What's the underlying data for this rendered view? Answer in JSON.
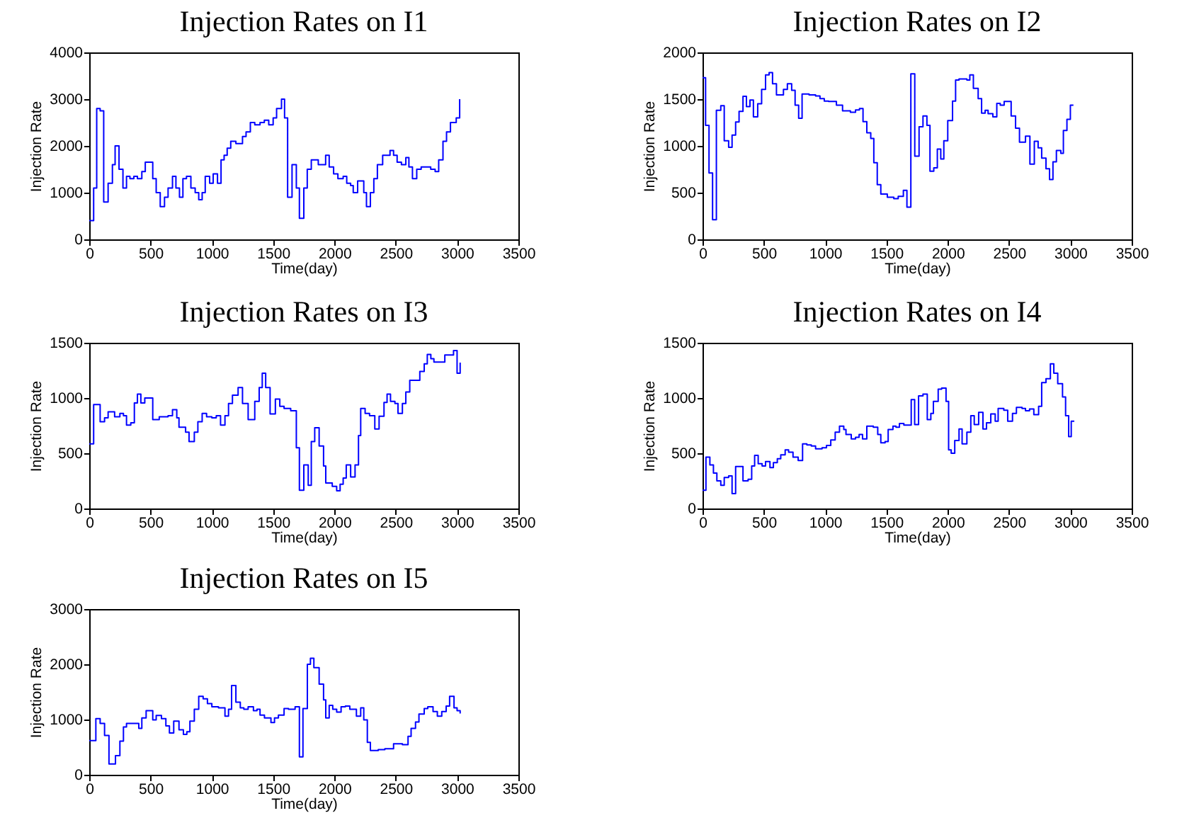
{
  "chart_data": [
    {
      "type": "step",
      "title": "Injection Rates on I1",
      "xlabel": "Time(day)",
      "ylabel": "Injection Rate",
      "xlim": [
        0,
        3500
      ],
      "xticks": [
        0,
        500,
        1000,
        1500,
        2000,
        2500,
        3000,
        3500
      ],
      "ylim": [
        0,
        4000
      ],
      "yticks": [
        0,
        1000,
        2000,
        3000,
        4000
      ],
      "grid": false,
      "series": [
        {
          "color": "#0000ff",
          "x": [
            0,
            36,
            61,
            89,
            118,
            154,
            189,
            211,
            243,
            275,
            304,
            332,
            364,
            393,
            429,
            457,
            518,
            546,
            579,
            614,
            643,
            679,
            707,
            736,
            764,
            793,
            829,
            864,
            893,
            921,
            946,
            982,
            1011,
            1046,
            1075,
            1100,
            1125,
            1154,
            1196,
            1250,
            1279,
            1314,
            1350,
            1393,
            1428,
            1464,
            1500,
            1528,
            1568,
            1593,
            1618,
            1654,
            1689,
            1714,
            1750,
            1778,
            1811,
            1868,
            1928,
            1957,
            1993,
            2028,
            2071,
            2100,
            2132,
            2153,
            2189,
            2239,
            2261,
            2293,
            2321,
            2350,
            2393,
            2453,
            2482,
            2511,
            2546,
            2582,
            2607,
            2636,
            2671,
            2707,
            2785,
            2821,
            2850,
            2885,
            2914,
            2946,
            2993,
            3021
          ],
          "values": [
            400,
            1100,
            2800,
            2750,
            800,
            1200,
            1600,
            2000,
            1500,
            1100,
            1350,
            1300,
            1350,
            1300,
            1450,
            1650,
            1300,
            1000,
            700,
            900,
            1100,
            1350,
            1100,
            900,
            1300,
            1350,
            1100,
            1000,
            850,
            1000,
            1350,
            1200,
            1400,
            1200,
            1700,
            1800,
            1950,
            2100,
            2050,
            2200,
            2300,
            2500,
            2450,
            2500,
            2550,
            2450,
            2600,
            2800,
            3000,
            2600,
            900,
            1600,
            1100,
            450,
            1100,
            1500,
            1700,
            1600,
            1800,
            1550,
            1400,
            1300,
            1350,
            1200,
            1150,
            1000,
            1250,
            1000,
            700,
            1000,
            1300,
            1600,
            1800,
            1900,
            1800,
            1650,
            1600,
            1750,
            1550,
            1300,
            1500,
            1550,
            1500,
            1450,
            1700,
            2100,
            2300,
            2500,
            2600,
            3000
          ]
        }
      ]
    },
    {
      "type": "step",
      "title": "Injection Rates on I2",
      "xlabel": "Time(day)",
      "ylabel": "Injection Rate",
      "xlim": [
        0,
        3500
      ],
      "xticks": [
        0,
        500,
        1000,
        1500,
        2000,
        2500,
        3000,
        3500
      ],
      "ylim": [
        0,
        2000
      ],
      "yticks": [
        0,
        500,
        1000,
        1500,
        2000
      ],
      "grid": false,
      "series": [
        {
          "color": "#0000ff",
          "x": [
            0,
            25,
            53,
            82,
            113,
            149,
            177,
            213,
            241,
            270,
            298,
            330,
            358,
            387,
            415,
            450,
            482,
            514,
            543,
            571,
            603,
            660,
            692,
            727,
            755,
            784,
            812,
            869,
            922,
            958,
            993,
            1028,
            1092,
            1142,
            1206,
            1248,
            1280,
            1309,
            1340,
            1372,
            1397,
            1425,
            1454,
            1507,
            1560,
            1596,
            1638,
            1667,
            1699,
            1731,
            1766,
            1798,
            1830,
            1855,
            1886,
            1915,
            1943,
            1968,
            2000,
            2039,
            2064,
            2092,
            2156,
            2180,
            2209,
            2248,
            2276,
            2305,
            2329,
            2368,
            2400,
            2428,
            2460,
            2517,
            2553,
            2585,
            2634,
            2670,
            2706,
            2737,
            2766,
            2801,
            2830,
            2858,
            2886,
            2922,
            2943,
            2972,
            3000,
            3025
          ],
          "values": [
            1730,
            1220,
            710,
            210,
            1380,
            1430,
            1055,
            985,
            1115,
            1255,
            1370,
            1530,
            1420,
            1490,
            1310,
            1450,
            1605,
            1760,
            1785,
            1665,
            1545,
            1605,
            1665,
            1595,
            1435,
            1295,
            1555,
            1545,
            1535,
            1505,
            1480,
            1475,
            1435,
            1375,
            1360,
            1385,
            1400,
            1260,
            1140,
            1080,
            820,
            585,
            485,
            450,
            435,
            460,
            525,
            345,
            1770,
            890,
            1205,
            1320,
            1220,
            730,
            765,
            965,
            860,
            1055,
            1270,
            1480,
            1705,
            1715,
            1705,
            1760,
            1615,
            1505,
            1350,
            1380,
            1345,
            1310,
            1455,
            1435,
            1475,
            1320,
            1190,
            1040,
            1105,
            805,
            1050,
            980,
            870,
            755,
            640,
            830,
            950,
            920,
            1165,
            1285,
            1435,
            1435
          ]
        }
      ]
    },
    {
      "type": "step",
      "title": "Injection Rates on I3",
      "xlabel": "Time(day)",
      "ylabel": "Injection Rate",
      "xlim": [
        0,
        3500
      ],
      "xticks": [
        0,
        500,
        1000,
        1500,
        2000,
        2500,
        3000,
        3500
      ],
      "ylim": [
        0,
        1500
      ],
      "yticks": [
        0,
        500,
        1000,
        1500
      ],
      "grid": false,
      "series": [
        {
          "color": "#0000ff",
          "x": [
            0,
            36,
            89,
            125,
            154,
            207,
            250,
            279,
            304,
            339,
            368,
            393,
            421,
            453,
            518,
            571,
            643,
            679,
            714,
            732,
            786,
            814,
            857,
            886,
            921,
            957,
            1000,
            1036,
            1071,
            1107,
            1136,
            1168,
            1214,
            1250,
            1296,
            1350,
            1386,
            1411,
            1439,
            1475,
            1518,
            1554,
            1589,
            1643,
            1689,
            1714,
            1750,
            1786,
            1811,
            1839,
            1875,
            1911,
            1929,
            1982,
            2018,
            2046,
            2071,
            2096,
            2132,
            2168,
            2196,
            2214,
            2250,
            2286,
            2329,
            2364,
            2404,
            2429,
            2457,
            2493,
            2518,
            2554,
            2582,
            2614,
            2696,
            2732,
            2757,
            2786,
            2811,
            2857,
            2900,
            2971,
            3000,
            3025
          ],
          "values": [
            585,
            940,
            785,
            820,
            875,
            830,
            860,
            840,
            755,
            775,
            955,
            1035,
            955,
            1000,
            805,
            830,
            840,
            895,
            820,
            735,
            690,
            605,
            690,
            785,
            860,
            830,
            820,
            840,
            755,
            840,
            950,
            1025,
            1095,
            950,
            805,
            970,
            1095,
            1225,
            1095,
            855,
            990,
            925,
            905,
            885,
            550,
            165,
            395,
            210,
            605,
            730,
            565,
            385,
            230,
            200,
            160,
            220,
            275,
            395,
            285,
            395,
            660,
            905,
            860,
            840,
            720,
            835,
            960,
            1035,
            970,
            950,
            860,
            950,
            1055,
            1160,
            1240,
            1310,
            1395,
            1355,
            1325,
            1325,
            1390,
            1430,
            1225,
            1320
          ]
        }
      ]
    },
    {
      "type": "step",
      "title": "Injection Rates on I4",
      "xlabel": "Time(day)",
      "ylabel": "Injection Rate",
      "xlim": [
        0,
        3500
      ],
      "xticks": [
        0,
        500,
        1000,
        1500,
        2000,
        2500,
        3000,
        3500
      ],
      "ylim": [
        0,
        1500
      ],
      "yticks": [
        0,
        500,
        1000,
        1500
      ],
      "grid": false,
      "series": [
        {
          "color": "#0000ff",
          "x": [
            0,
            28,
            60,
            89,
            117,
            149,
            177,
            213,
            241,
            270,
            330,
            372,
            401,
            425,
            454,
            486,
            514,
            550,
            578,
            610,
            638,
            674,
            702,
            738,
            780,
            816,
            851,
            887,
            922,
            975,
            1011,
            1046,
            1082,
            1117,
            1152,
            1170,
            1213,
            1248,
            1277,
            1305,
            1340,
            1393,
            1429,
            1454,
            1489,
            1514,
            1553,
            1578,
            1606,
            1642,
            1702,
            1730,
            1762,
            1798,
            1833,
            1862,
            1883,
            1922,
            1950,
            1986,
            2007,
            2028,
            2057,
            2092,
            2117,
            2156,
            2188,
            2216,
            2252,
            2287,
            2316,
            2351,
            2387,
            2411,
            2457,
            2489,
            2528,
            2560,
            2606,
            2634,
            2667,
            2702,
            2741,
            2766,
            2801,
            2837,
            2865,
            2897,
            2936,
            2961,
            2986,
            3007,
            3032
          ],
          "values": [
            165,
            465,
            395,
            320,
            250,
            210,
            280,
            295,
            135,
            380,
            250,
            265,
            385,
            480,
            405,
            385,
            425,
            370,
            415,
            450,
            485,
            530,
            510,
            465,
            435,
            585,
            575,
            565,
            540,
            550,
            570,
            620,
            690,
            745,
            715,
            670,
            630,
            645,
            670,
            630,
            745,
            735,
            670,
            595,
            605,
            715,
            745,
            735,
            770,
            755,
            985,
            760,
            1020,
            1035,
            805,
            860,
            970,
            1080,
            1090,
            970,
            530,
            500,
            615,
            720,
            585,
            690,
            840,
            760,
            870,
            720,
            775,
            855,
            790,
            905,
            890,
            790,
            860,
            915,
            905,
            885,
            900,
            850,
            925,
            1140,
            1175,
            1310,
            1225,
            1130,
            1010,
            840,
            650,
            790,
            790
          ]
        }
      ]
    },
    {
      "type": "step",
      "title": "Injection Rates on I5",
      "xlabel": "Time(day)",
      "ylabel": "Injection Rate",
      "xlim": [
        0,
        3500
      ],
      "xticks": [
        0,
        500,
        1000,
        1500,
        2000,
        2500,
        3000,
        3500
      ],
      "ylim": [
        0,
        3000
      ],
      "yticks": [
        0,
        1000,
        2000,
        3000
      ],
      "grid": false,
      "series": [
        {
          "color": "#0000ff",
          "x": [
            0,
            54,
            89,
            125,
            161,
            214,
            250,
            279,
            304,
            404,
            429,
            464,
            518,
            546,
            589,
            625,
            654,
            689,
            732,
            768,
            796,
            821,
            857,
            893,
            929,
            964,
            1000,
            1054,
            1107,
            1136,
            1161,
            1196,
            1232,
            1261,
            1296,
            1339,
            1368,
            1393,
            1429,
            1482,
            1511,
            1543,
            1589,
            1625,
            1679,
            1714,
            1743,
            1779,
            1804,
            1832,
            1875,
            1911,
            1929,
            1957,
            1986,
            2018,
            2054,
            2089,
            2125,
            2179,
            2214,
            2239,
            2268,
            2293,
            2357,
            2411,
            2482,
            2554,
            2600,
            2625,
            2661,
            2689,
            2732,
            2761,
            2804,
            2839,
            2875,
            2911,
            2939,
            2975,
            3000,
            3025
          ],
          "values": [
            620,
            1015,
            930,
            710,
            195,
            345,
            610,
            865,
            930,
            840,
            1030,
            1160,
            995,
            1075,
            1015,
            885,
            755,
            970,
            815,
            730,
            780,
            970,
            1185,
            1420,
            1375,
            1290,
            1230,
            1210,
            1060,
            1185,
            1615,
            1315,
            1210,
            1185,
            1230,
            1160,
            1185,
            1080,
            1030,
            945,
            1030,
            1080,
            1200,
            1185,
            1230,
            325,
            1200,
            2000,
            2110,
            1940,
            1640,
            1355,
            1030,
            1255,
            1185,
            1135,
            1230,
            1245,
            1185,
            1060,
            1210,
            995,
            585,
            440,
            455,
            470,
            560,
            545,
            695,
            840,
            955,
            1100,
            1200,
            1230,
            1145,
            1060,
            1145,
            1245,
            1420,
            1210,
            1160,
            1110
          ]
        }
      ]
    }
  ]
}
